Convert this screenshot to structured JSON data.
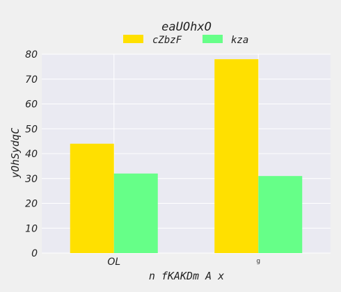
{
  "chart_data": {
    "type": "bar",
    "title": "eaUOhxO",
    "xlabel": "n fKAKDm A  x",
    "ylabel": "yOhSydqC",
    "categories": [
      "OL",
      "g"
    ],
    "series": [
      {
        "name": "cZbzF",
        "color": "#ffe000",
        "values": [
          44,
          78
        ]
      },
      {
        "name": "kza",
        "color": "#66ff88",
        "values": [
          32,
          31
        ]
      }
    ],
    "ylim": [
      0,
      80
    ],
    "yticks": [
      0,
      10,
      20,
      30,
      40,
      50,
      60,
      70,
      80
    ],
    "grid": true,
    "legend_position": "top-center"
  }
}
